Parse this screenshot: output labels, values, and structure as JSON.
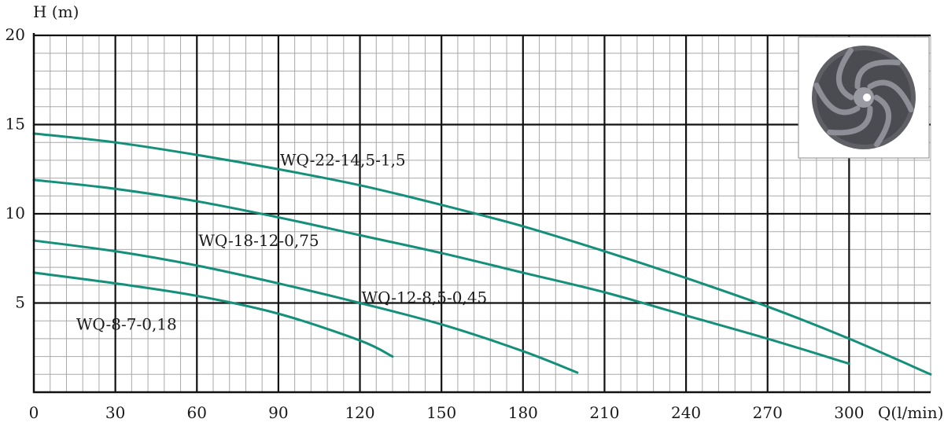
{
  "chart_data": {
    "type": "line",
    "title": "",
    "xlabel": "Q(l/min)",
    "ylabel": "H (m)",
    "xlim": [
      0,
      330
    ],
    "ylim": [
      0,
      20
    ],
    "x_ticks": [
      0,
      30,
      60,
      90,
      120,
      150,
      180,
      210,
      240,
      270,
      300
    ],
    "y_ticks": [
      5,
      10,
      15,
      20
    ],
    "grid": true,
    "line_color": "#14907a",
    "inset_image": "impeller-photo",
    "series": [
      {
        "name": "WQ-22-14,5-1,5",
        "x": [
          0,
          30,
          60,
          90,
          120,
          150,
          180,
          210,
          240,
          270,
          300,
          330
        ],
        "y": [
          14.5,
          14.0,
          13.3,
          12.5,
          11.6,
          10.5,
          9.3,
          7.9,
          6.4,
          4.8,
          3.0,
          1.0
        ]
      },
      {
        "name": "WQ-18-12-0,75",
        "x": [
          0,
          30,
          60,
          90,
          120,
          150,
          180,
          210,
          240,
          270,
          300
        ],
        "y": [
          11.9,
          11.4,
          10.7,
          9.8,
          8.8,
          7.8,
          6.7,
          5.6,
          4.3,
          3.0,
          1.6
        ]
      },
      {
        "name": "WQ-12-8,5-0,45",
        "x": [
          0,
          30,
          60,
          90,
          120,
          150,
          180,
          200
        ],
        "y": [
          8.5,
          7.9,
          7.1,
          6.1,
          5.0,
          3.8,
          2.3,
          1.1
        ]
      },
      {
        "name": "WQ-8-7-0,18",
        "x": [
          0,
          30,
          60,
          90,
          120,
          132
        ],
        "y": [
          6.7,
          6.1,
          5.4,
          4.4,
          2.9,
          2.0
        ]
      }
    ]
  }
}
